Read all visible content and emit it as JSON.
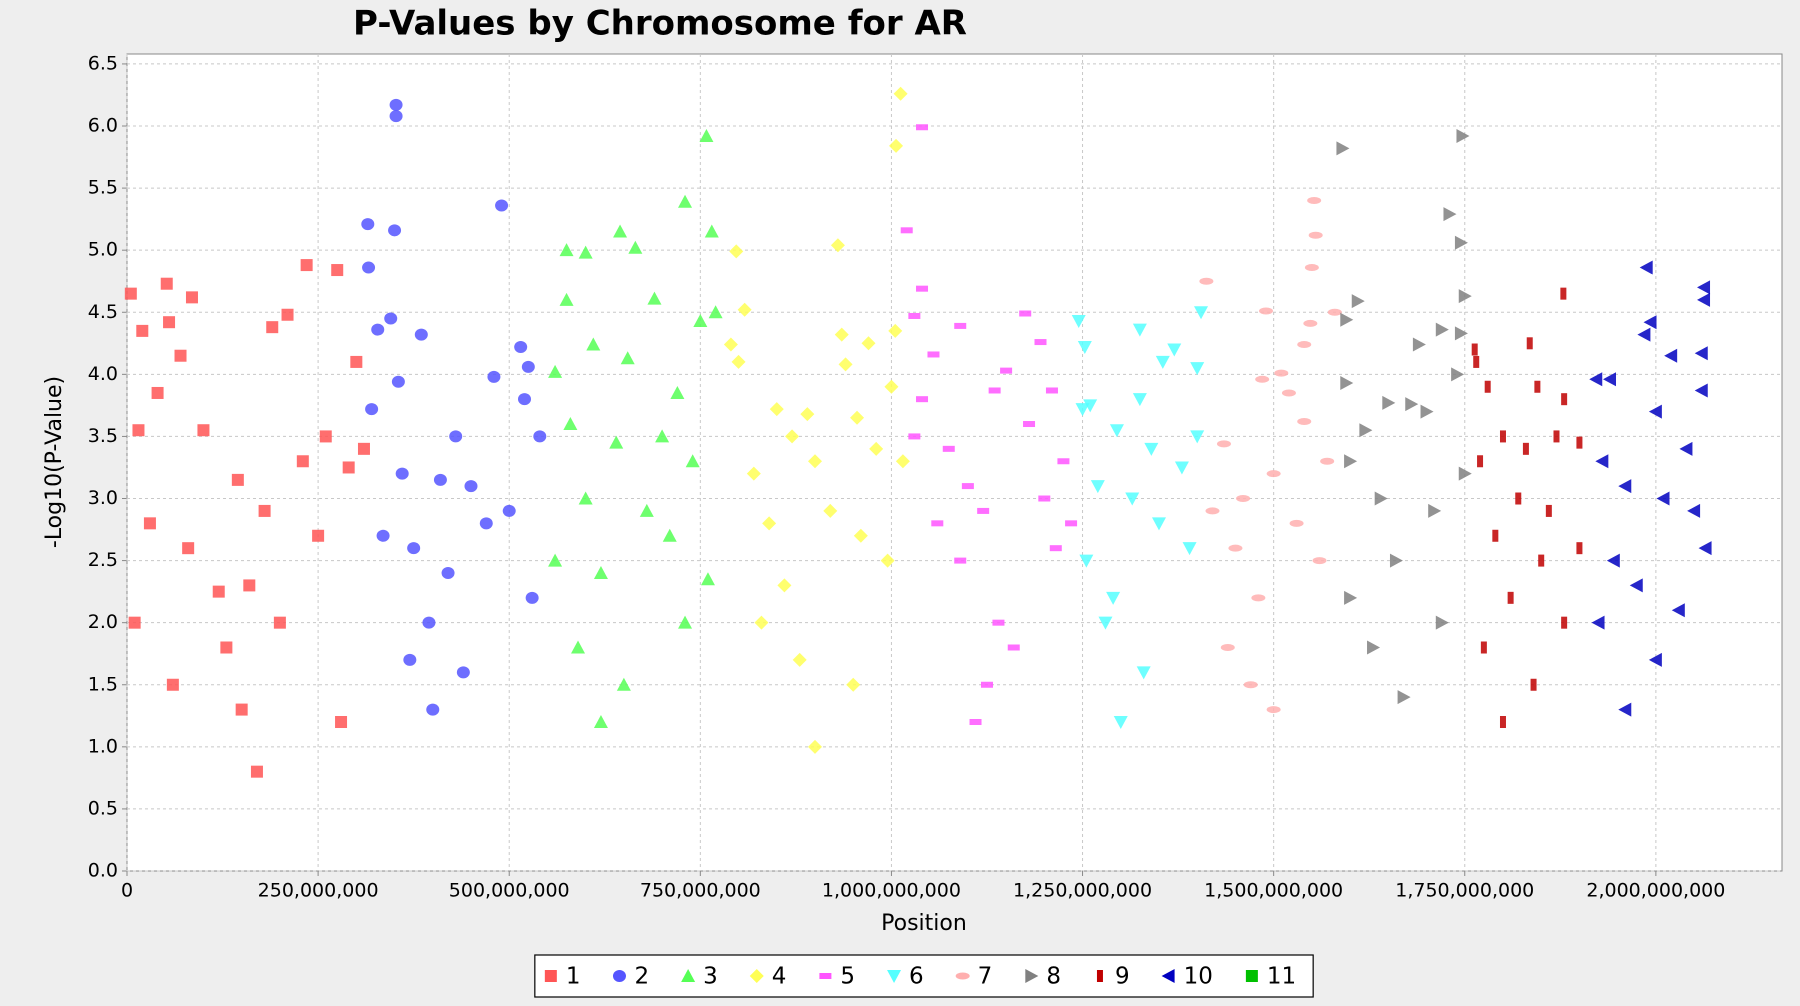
{
  "chart_data": {
    "type": "scatter",
    "title": "P-Values by Chromosome for AR",
    "x_label": "Position",
    "y_label": "-Log10(P-Value)",
    "xlim": [
      0,
      2165000000
    ],
    "ylim": [
      0,
      6.58
    ],
    "xticks": [
      0,
      {
        "value": 250000000,
        "label": "250,000,000"
      },
      {
        "value": 500000000,
        "label": "500,000,000"
      },
      {
        "value": 750000000,
        "label": "750,000,000"
      },
      {
        "value": 1000000000,
        "label": "1,000,000,000"
      },
      {
        "value": 1250000000,
        "label": "1,250,000,000"
      },
      {
        "value": 1500000000,
        "label": "1,500,000,000"
      },
      {
        "value": 1750000000,
        "label": "1,750,000,000"
      },
      {
        "value": 2000000000,
        "label": "2,000,000,000"
      }
    ],
    "yticks": [
      {
        "value": 0,
        "label": "0.0"
      },
      0.5,
      {
        "value": 1,
        "label": "1.0"
      },
      1.5,
      {
        "value": 2,
        "label": "2.0"
      },
      2.5,
      {
        "value": 3,
        "label": "3.0"
      },
      3.5,
      {
        "value": 4,
        "label": "4.0"
      },
      4.5,
      {
        "value": 5,
        "label": "5.0"
      },
      5.5,
      {
        "value": 6,
        "label": "6.0"
      },
      6.5
    ],
    "grid": true,
    "legend": "bottom",
    "series": [
      {
        "name": "1",
        "color": "#ff5555",
        "marker": "square",
        "x": [
          5000000,
          52000000,
          85000000,
          20000000,
          55000000,
          235000000,
          275000000,
          210000000,
          190000000,
          300000000,
          70000000,
          40000000,
          15000000,
          100000000,
          145000000,
          160000000,
          120000000,
          180000000,
          230000000,
          260000000,
          290000000,
          310000000,
          30000000,
          80000000,
          130000000,
          150000000,
          200000000,
          250000000,
          10000000,
          60000000,
          170000000,
          280000000
        ],
        "values": [
          4.65,
          4.73,
          4.62,
          4.35,
          4.42,
          4.88,
          4.84,
          4.48,
          4.38,
          4.1,
          4.15,
          3.85,
          3.55,
          3.55,
          3.15,
          2.3,
          2.25,
          2.9,
          3.3,
          3.5,
          3.25,
          3.4,
          2.8,
          2.6,
          1.8,
          1.3,
          2.0,
          2.7,
          2.0,
          1.5,
          0.8,
          1.2
        ]
      },
      {
        "name": "2",
        "color": "#5555ff",
        "marker": "circle",
        "x": [
          352000000,
          352000000,
          315000000,
          350000000,
          316000000,
          490000000,
          345000000,
          328000000,
          385000000,
          515000000,
          525000000,
          355000000,
          480000000,
          430000000,
          520000000,
          320000000,
          360000000,
          410000000,
          450000000,
          540000000,
          375000000,
          395000000,
          420000000,
          470000000,
          500000000,
          335000000,
          370000000,
          440000000,
          400000000,
          530000000
        ],
        "values": [
          6.17,
          6.08,
          5.21,
          5.16,
          4.86,
          5.36,
          4.45,
          4.36,
          4.32,
          4.22,
          4.06,
          3.94,
          3.98,
          3.5,
          3.8,
          3.72,
          3.2,
          3.15,
          3.1,
          3.5,
          2.6,
          2.0,
          2.4,
          2.8,
          2.9,
          2.7,
          1.7,
          1.6,
          1.3,
          2.2
        ]
      },
      {
        "name": "3",
        "color": "#55ff55",
        "marker": "triangle-up",
        "x": [
          758000000,
          730000000,
          765000000,
          645000000,
          575000000,
          600000000,
          665000000,
          690000000,
          575000000,
          770000000,
          750000000,
          610000000,
          560000000,
          655000000,
          720000000,
          580000000,
          640000000,
          700000000,
          740000000,
          600000000,
          680000000,
          560000000,
          620000000,
          710000000,
          760000000,
          590000000,
          650000000,
          730000000,
          620000000
        ],
        "values": [
          5.92,
          5.39,
          5.15,
          5.15,
          5.0,
          4.98,
          5.02,
          4.61,
          4.6,
          4.5,
          4.43,
          4.24,
          4.02,
          4.13,
          3.85,
          3.6,
          3.45,
          3.5,
          3.3,
          3.0,
          2.9,
          2.5,
          2.4,
          2.7,
          2.35,
          1.8,
          1.5,
          2.0,
          1.2
        ]
      },
      {
        "name": "4",
        "color": "#ffff55",
        "marker": "diamond",
        "x": [
          1012000000,
          1006000000,
          797000000,
          930000000,
          808000000,
          790000000,
          1005000000,
          935000000,
          970000000,
          1000000000,
          800000000,
          940000000,
          850000000,
          890000000,
          955000000,
          870000000,
          820000000,
          900000000,
          980000000,
          1015000000,
          840000000,
          920000000,
          960000000,
          860000000,
          880000000,
          900000000,
          995000000,
          830000000,
          950000000
        ],
        "values": [
          6.26,
          5.84,
          4.99,
          5.04,
          4.52,
          4.24,
          4.35,
          4.32,
          4.25,
          3.9,
          4.1,
          4.08,
          3.72,
          3.68,
          3.65,
          3.5,
          3.2,
          3.3,
          3.4,
          3.3,
          2.8,
          2.9,
          2.7,
          2.3,
          1.7,
          1.0,
          2.5,
          2.0,
          1.5
        ]
      },
      {
        "name": "5",
        "color": "#ff55ff",
        "marker": "rect-h",
        "x": [
          1040000000,
          1020000000,
          1040000000,
          1030000000,
          1175000000,
          1090000000,
          1055000000,
          1150000000,
          1195000000,
          1135000000,
          1210000000,
          1040000000,
          1030000000,
          1075000000,
          1100000000,
          1120000000,
          1180000000,
          1225000000,
          1200000000,
          1060000000,
          1090000000,
          1140000000,
          1125000000,
          1160000000,
          1215000000,
          1110000000,
          1235000000
        ],
        "values": [
          5.99,
          5.16,
          4.69,
          4.47,
          4.49,
          4.39,
          4.16,
          4.03,
          4.26,
          3.87,
          3.87,
          3.8,
          3.5,
          3.4,
          3.1,
          2.9,
          3.6,
          3.3,
          3.0,
          2.8,
          2.5,
          2.0,
          1.5,
          1.8,
          2.6,
          1.2,
          2.8
        ]
      },
      {
        "name": "6",
        "color": "#55ffff",
        "marker": "triangle-down",
        "x": [
          1245000000,
          1253000000,
          1370000000,
          1405000000,
          1325000000,
          1355000000,
          1400000000,
          1250000000,
          1260000000,
          1325000000,
          1295000000,
          1340000000,
          1380000000,
          1270000000,
          1315000000,
          1400000000,
          1255000000,
          1290000000,
          1350000000,
          1280000000,
          1330000000,
          1390000000,
          1300000000
        ],
        "values": [
          4.43,
          4.22,
          4.2,
          4.5,
          4.36,
          4.1,
          4.05,
          3.72,
          3.75,
          3.8,
          3.55,
          3.4,
          3.25,
          3.1,
          3.0,
          3.5,
          2.5,
          2.2,
          2.8,
          2.0,
          1.6,
          2.6,
          1.2
        ]
      },
      {
        "name": "7",
        "color": "#ffafaf",
        "marker": "ellipse-h",
        "x": [
          1553000000,
          1555000000,
          1550000000,
          1412000000,
          1490000000,
          1580000000,
          1548000000,
          1540000000,
          1510000000,
          1485000000,
          1520000000,
          1540000000,
          1435000000,
          1460000000,
          1500000000,
          1570000000,
          1420000000,
          1450000000,
          1480000000,
          1530000000,
          1440000000,
          1470000000,
          1560000000,
          1500000000
        ],
        "values": [
          5.4,
          5.12,
          4.86,
          4.75,
          4.51,
          4.5,
          4.41,
          4.24,
          4.01,
          3.96,
          3.85,
          3.62,
          3.44,
          3.0,
          3.2,
          3.3,
          2.9,
          2.6,
          2.2,
          2.8,
          1.8,
          1.5,
          2.5,
          1.3
        ]
      },
      {
        "name": "8",
        "color": "#808080",
        "marker": "triangle-right",
        "x": [
          1590000000,
          1747000000,
          1730000000,
          1745000000,
          1610000000,
          1750000000,
          1595000000,
          1745000000,
          1720000000,
          1690000000,
          1740000000,
          1595000000,
          1650000000,
          1680000000,
          1620000000,
          1700000000,
          1600000000,
          1640000000,
          1710000000,
          1660000000,
          1600000000,
          1630000000,
          1670000000,
          1750000000,
          1720000000
        ],
        "values": [
          5.82,
          5.92,
          5.29,
          5.06,
          4.59,
          4.63,
          4.44,
          4.33,
          4.36,
          4.24,
          4.0,
          3.93,
          3.77,
          3.76,
          3.55,
          3.7,
          3.3,
          3.0,
          2.9,
          2.5,
          2.2,
          1.8,
          1.4,
          3.2,
          2.0
        ]
      },
      {
        "name": "9",
        "color": "#c00000",
        "marker": "rect-v",
        "x": [
          1879000000,
          1763000000,
          1765000000,
          1835000000,
          1845000000,
          1780000000,
          1880000000,
          1800000000,
          1830000000,
          1870000000,
          1900000000,
          1770000000,
          1820000000,
          1860000000,
          1790000000,
          1850000000,
          1810000000,
          1880000000,
          1775000000,
          1840000000,
          1900000000,
          1800000000
        ],
        "values": [
          4.65,
          4.2,
          4.1,
          4.25,
          3.9,
          3.9,
          3.8,
          3.5,
          3.4,
          3.5,
          3.45,
          3.3,
          3.0,
          2.9,
          2.7,
          2.5,
          2.2,
          2.0,
          1.8,
          1.5,
          2.6,
          1.2
        ]
      },
      {
        "name": "10",
        "color": "#0000c0",
        "marker": "triangle-left",
        "x": [
          1988000000,
          2063000000,
          2063000000,
          1993000000,
          1985000000,
          2020000000,
          2060000000,
          1922000000,
          1940000000,
          2060000000,
          2000000000,
          2040000000,
          1930000000,
          1960000000,
          2010000000,
          2050000000,
          1945000000,
          1975000000,
          2030000000,
          1925000000,
          2000000000,
          2065000000,
          1960000000
        ],
        "values": [
          4.86,
          4.7,
          4.6,
          4.42,
          4.32,
          4.15,
          4.17,
          3.96,
          3.96,
          3.87,
          3.7,
          3.4,
          3.3,
          3.1,
          3.0,
          2.9,
          2.5,
          2.3,
          2.1,
          2.0,
          1.7,
          2.6,
          1.3
        ]
      },
      {
        "name": "11",
        "color": "#00c000",
        "marker": "square",
        "x": [],
        "values": []
      }
    ]
  }
}
